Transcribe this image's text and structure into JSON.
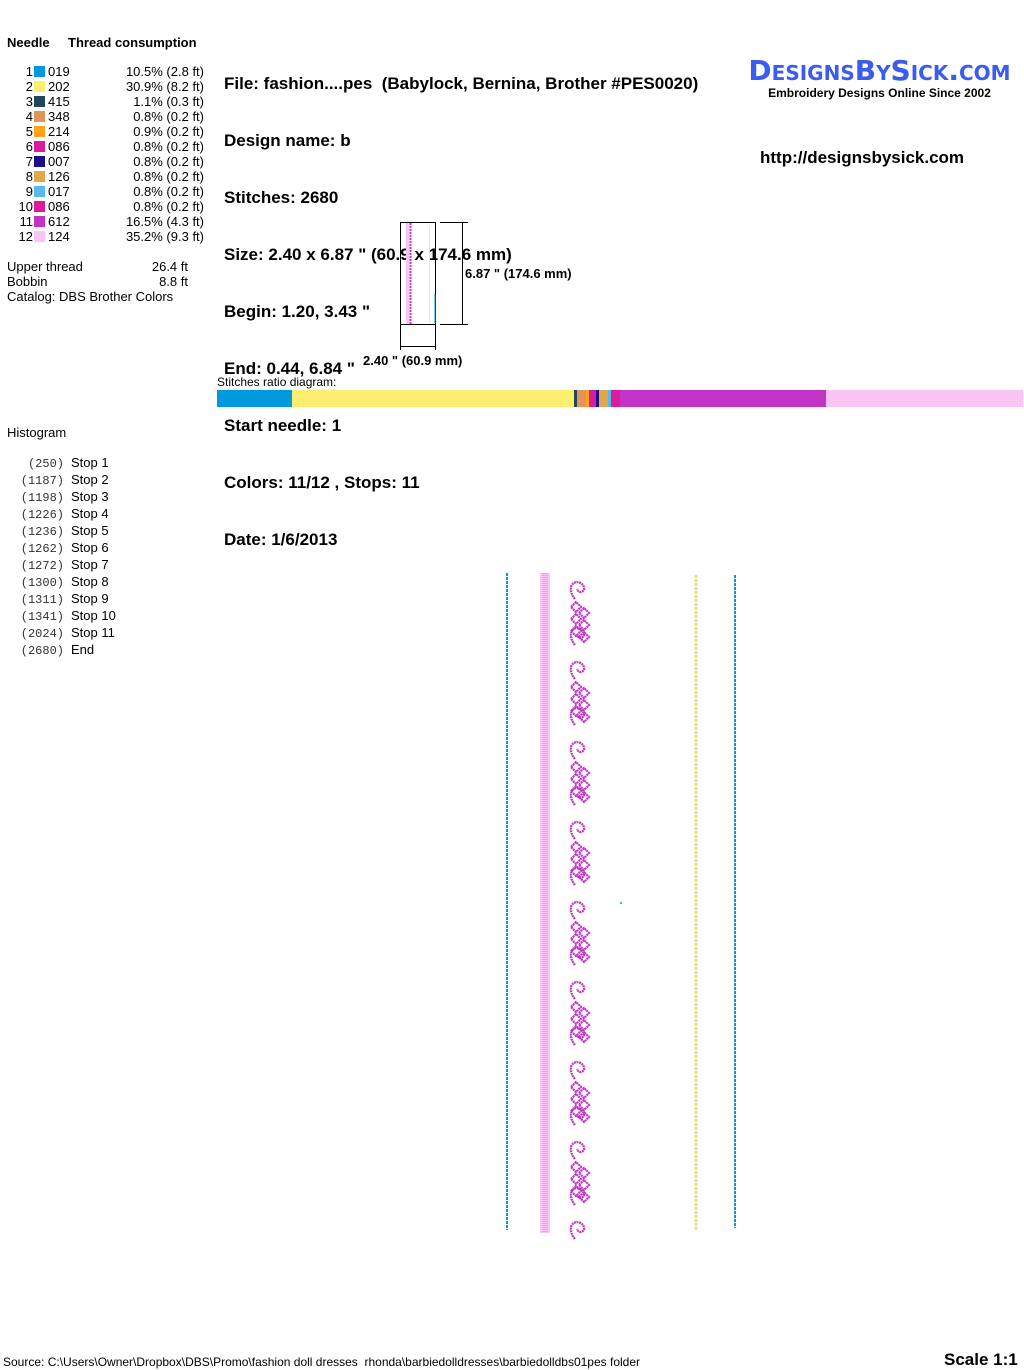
{
  "threads_table": {
    "needle_header": "Needle",
    "consumption_header": "Thread consumption",
    "rows": [
      {
        "needle": "1",
        "code": "019",
        "color": "#0099dd",
        "consumption": "10.5% (2.8 ft)"
      },
      {
        "needle": "2",
        "code": "202",
        "color": "#fcee6e",
        "consumption": "30.9% (8.2 ft)"
      },
      {
        "needle": "3",
        "code": "415",
        "color": "#24455e",
        "consumption": "1.1% (0.3 ft)"
      },
      {
        "needle": "4",
        "code": "348",
        "color": "#e0955a",
        "consumption": "0.8% (0.2 ft)"
      },
      {
        "needle": "5",
        "code": "214",
        "color": "#ffa31a",
        "consumption": "0.9% (0.2 ft)"
      },
      {
        "needle": "6",
        "code": "086",
        "color": "#dd1a99",
        "consumption": "0.8% (0.2 ft)"
      },
      {
        "needle": "7",
        "code": "007",
        "color": "#1a0f8a",
        "consumption": "0.8% (0.2 ft)"
      },
      {
        "needle": "8",
        "code": "126",
        "color": "#e0a84a",
        "consumption": "0.8% (0.2 ft)"
      },
      {
        "needle": "9",
        "code": "017",
        "color": "#5ab8ec",
        "consumption": "0.8% (0.2 ft)"
      },
      {
        "needle": "10",
        "code": "086",
        "color": "#dd1a99",
        "consumption": "0.8% (0.2 ft)"
      },
      {
        "needle": "11",
        "code": "612",
        "color": "#c433c8",
        "consumption": "16.5% (4.3 ft)"
      },
      {
        "needle": "12",
        "code": "124",
        "color": "#fac4f4",
        "consumption": "35.2% (9.3 ft)"
      }
    ],
    "upper_thread_label": "Upper thread",
    "upper_thread_value": "26.4 ft",
    "bobbin_label": "Bobbin",
    "bobbin_value": "8.8 ft",
    "catalog": "Catalog: DBS Brother Colors"
  },
  "info": {
    "file": "File: fashion....pes  (Babylock, Bernina, Brother #PES0020)",
    "design_name": "Design name: b",
    "stitches": "Stitches: 2680",
    "size": "Size: 2.40 x 6.87 \" (60.9 x 174.6 mm)",
    "begin": "Begin: 1.20, 3.43 \"",
    "end": "End: 0.44, 6.84 \"",
    "start_needle": "Start needle: 1",
    "colors_stops": "Colors: 11/12 , Stops: 11",
    "date": "Date: 1/6/2013"
  },
  "logo": {
    "text": "DesignsBySick.com",
    "tagline": "Embroidery Designs Online Since 2002",
    "color": "#3a5cf0"
  },
  "url": "http://designsbysick.com",
  "preview": {
    "height_label": "6.87 \" (174.6 mm)",
    "width_label": "2.40 \" (60.9 mm)"
  },
  "ratio": {
    "label": "Stitches ratio diagram:"
  },
  "histogram": {
    "title": "Histogram",
    "stops": [
      {
        "count": "(250)",
        "label": "Stop 1",
        "stitches": 250
      },
      {
        "count": "(1187)",
        "label": "Stop 2",
        "stitches": 1187
      },
      {
        "count": "(1198)",
        "label": "Stop 3",
        "stitches": 1198
      },
      {
        "count": "(1226)",
        "label": "Stop 4",
        "stitches": 1226
      },
      {
        "count": "(1236)",
        "label": "Stop 5",
        "stitches": 1236
      },
      {
        "count": "(1262)",
        "label": "Stop 6",
        "stitches": 1262
      },
      {
        "count": "(1272)",
        "label": "Stop 7",
        "stitches": 1272
      },
      {
        "count": "(1300)",
        "label": "Stop 8",
        "stitches": 1300
      },
      {
        "count": "(1311)",
        "label": "Stop 9",
        "stitches": 1311
      },
      {
        "count": "(1341)",
        "label": "Stop 10",
        "stitches": 1341
      },
      {
        "count": "(2024)",
        "label": "Stop 11",
        "stitches": 2024
      },
      {
        "count": "(2680)",
        "label": "End",
        "stitches": 2680
      }
    ]
  },
  "footer": {
    "source": "Source: C:\\Users\\Owner\\Dropbox\\DBS\\Promo\\fashion doll dresses  rhonda\\barbiedolldresses\\barbiedolldbs01pes folder",
    "scale": "Scale 1:1"
  }
}
